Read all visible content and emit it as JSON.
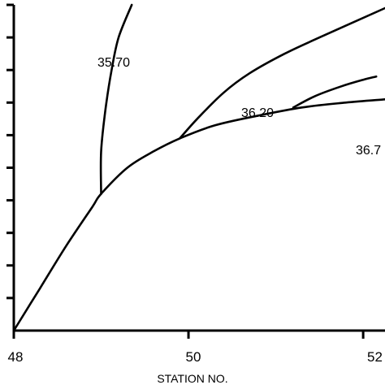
{
  "chart_data": {
    "type": "line",
    "xlabel": "STATION NO.",
    "x_ticks": [
      "48",
      "50",
      "52"
    ],
    "xlim": [
      48,
      52.25
    ],
    "ylim": [
      0,
      1
    ],
    "y_ticks_count": 11,
    "line_color": "#000000",
    "series": [
      {
        "name": "",
        "x": [
          48.0,
          48.3,
          48.6,
          48.9,
          49.0,
          49.3,
          49.6,
          49.9,
          50.3,
          50.8,
          51.3,
          51.8,
          52.25
        ],
        "y": [
          0.0,
          0.13,
          0.26,
          0.38,
          0.42,
          0.5,
          0.55,
          0.59,
          0.63,
          0.66,
          0.685,
          0.7,
          0.71
        ]
      },
      {
        "name": "35.70",
        "x": [
          49.0,
          49.0,
          49.05,
          49.12,
          49.2,
          49.35
        ],
        "y": [
          0.42,
          0.55,
          0.68,
          0.8,
          0.9,
          1.0
        ]
      },
      {
        "name": "36.20",
        "x": [
          49.9,
          50.1,
          50.4,
          50.7,
          51.1,
          51.5,
          52.25
        ],
        "y": [
          0.59,
          0.65,
          0.73,
          0.79,
          0.85,
          0.9,
          0.99
        ]
      },
      {
        "name": "36.7",
        "x": [
          51.2,
          51.45,
          51.75,
          52.0,
          52.15
        ],
        "y": [
          0.685,
          0.72,
          0.75,
          0.77,
          0.78
        ]
      }
    ],
    "annotations": [
      "35.70",
      "36.20",
      "36.7"
    ]
  }
}
